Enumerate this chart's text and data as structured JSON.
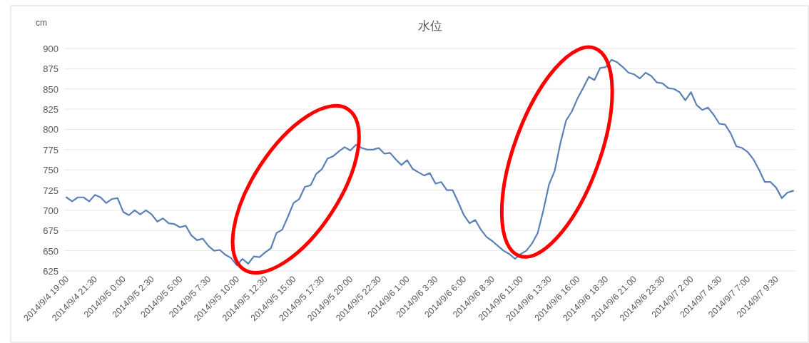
{
  "chart_data": {
    "type": "line",
    "title": "水位",
    "ylabel": "cm",
    "color": "#5b80b8",
    "grid": "y",
    "xlim": [
      "2014-09-04T18:48",
      "2014-09-07T11:12"
    ],
    "ylim": [
      625,
      900
    ],
    "yticks": [
      625,
      650,
      675,
      700,
      725,
      750,
      775,
      800,
      825,
      850,
      875,
      900
    ],
    "xticks": [
      {
        "value": "2014-09-04T19:00",
        "label": "2014/9/4 19:00"
      },
      {
        "value": "2014-09-04T21:30",
        "label": "2014/9/4 21:30"
      },
      {
        "value": "2014-09-05T00:00",
        "label": "2014/9/5 0:00"
      },
      {
        "value": "2014-09-05T02:30",
        "label": "2014/9/5 2:30"
      },
      {
        "value": "2014-09-05T05:00",
        "label": "2014/9/5 5:00"
      },
      {
        "value": "2014-09-05T07:30",
        "label": "2014/9/5 7:30"
      },
      {
        "value": "2014-09-05T10:00",
        "label": "2014/9/5 10:00"
      },
      {
        "value": "2014-09-05T12:30",
        "label": "2014/9/5 12:30"
      },
      {
        "value": "2014-09-05T15:00",
        "label": "2014/9/5 15:00"
      },
      {
        "value": "2014-09-05T17:30",
        "label": "2014/9/5 17:30"
      },
      {
        "value": "2014-09-05T20:00",
        "label": "2014/9/5 20:00"
      },
      {
        "value": "2014-09-05T22:30",
        "label": "2014/9/5 22:30"
      },
      {
        "value": "2014-09-06T01:00",
        "label": "2014/9/6 1:00"
      },
      {
        "value": "2014-09-06T03:30",
        "label": "2014/9/6 3:30"
      },
      {
        "value": "2014-09-06T06:00",
        "label": "2014/9/6 6:00"
      },
      {
        "value": "2014-09-06T08:30",
        "label": "2014/9/6 8:30"
      },
      {
        "value": "2014-09-06T11:00",
        "label": "2014/9/6 11:00"
      },
      {
        "value": "2014-09-06T13:30",
        "label": "2014/9/6 13:30"
      },
      {
        "value": "2014-09-06T16:00",
        "label": "2014/9/6 16:00"
      },
      {
        "value": "2014-09-06T18:30",
        "label": "2014/9/6 18:30"
      },
      {
        "value": "2014-09-06T21:00",
        "label": "2014/9/6 21:00"
      },
      {
        "value": "2014-09-06T23:30",
        "label": "2014/9/6 23:30"
      },
      {
        "value": "2014-09-07T02:00",
        "label": "2014/9/7 2:00"
      },
      {
        "value": "2014-09-07T04:30",
        "label": "2014/9/7 4:30"
      },
      {
        "value": "2014-09-07T07:00",
        "label": "2014/9/7 7:00"
      },
      {
        "value": "2014-09-07T09:30",
        "label": "2014/9/7 9:30"
      }
    ],
    "x": [
      "2014-09-04T19:00",
      "2014-09-04T19:30",
      "2014-09-04T20:00",
      "2014-09-04T20:30",
      "2014-09-04T21:00",
      "2014-09-04T21:30",
      "2014-09-04T22:00",
      "2014-09-04T22:30",
      "2014-09-04T23:00",
      "2014-09-04T23:30",
      "2014-09-05T00:00",
      "2014-09-05T00:30",
      "2014-09-05T01:00",
      "2014-09-05T01:30",
      "2014-09-05T02:00",
      "2014-09-05T02:30",
      "2014-09-05T03:00",
      "2014-09-05T03:30",
      "2014-09-05T04:00",
      "2014-09-05T04:30",
      "2014-09-05T05:00",
      "2014-09-05T05:30",
      "2014-09-05T06:00",
      "2014-09-05T06:30",
      "2014-09-05T07:00",
      "2014-09-05T07:30",
      "2014-09-05T08:00",
      "2014-09-05T08:30",
      "2014-09-05T09:00",
      "2014-09-05T09:30",
      "2014-09-05T10:00",
      "2014-09-05T10:30",
      "2014-09-05T11:00",
      "2014-09-05T11:30",
      "2014-09-05T12:00",
      "2014-09-05T12:30",
      "2014-09-05T13:00",
      "2014-09-05T13:30",
      "2014-09-05T14:00",
      "2014-09-05T14:30",
      "2014-09-05T15:00",
      "2014-09-05T15:30",
      "2014-09-05T16:00",
      "2014-09-05T16:30",
      "2014-09-05T17:00",
      "2014-09-05T17:30",
      "2014-09-05T18:00",
      "2014-09-05T18:30",
      "2014-09-05T19:00",
      "2014-09-05T19:30",
      "2014-09-05T20:00",
      "2014-09-05T20:30",
      "2014-09-05T21:00",
      "2014-09-05T21:30",
      "2014-09-05T22:00",
      "2014-09-05T22:30",
      "2014-09-05T23:00",
      "2014-09-05T23:30",
      "2014-09-06T00:00",
      "2014-09-06T00:30",
      "2014-09-06T01:00",
      "2014-09-06T01:30",
      "2014-09-06T02:00",
      "2014-09-06T02:30",
      "2014-09-06T03:00",
      "2014-09-06T03:30",
      "2014-09-06T04:00",
      "2014-09-06T04:30",
      "2014-09-06T05:00",
      "2014-09-06T05:30",
      "2014-09-06T06:00",
      "2014-09-06T06:30",
      "2014-09-06T07:00",
      "2014-09-06T07:30",
      "2014-09-06T08:00",
      "2014-09-06T08:30",
      "2014-09-06T09:00",
      "2014-09-06T09:30",
      "2014-09-06T10:00",
      "2014-09-06T10:30",
      "2014-09-06T11:00",
      "2014-09-06T11:30",
      "2014-09-06T12:00",
      "2014-09-06T12:30",
      "2014-09-06T13:00",
      "2014-09-06T13:30",
      "2014-09-06T14:00",
      "2014-09-06T14:30",
      "2014-09-06T15:00",
      "2014-09-06T15:30",
      "2014-09-06T16:00",
      "2014-09-06T16:30",
      "2014-09-06T17:00",
      "2014-09-06T17:30",
      "2014-09-06T18:00",
      "2014-09-06T18:30",
      "2014-09-06T19:00",
      "2014-09-06T19:30",
      "2014-09-06T20:00",
      "2014-09-06T20:30",
      "2014-09-06T21:00",
      "2014-09-06T21:30",
      "2014-09-06T22:00",
      "2014-09-06T22:30",
      "2014-09-06T23:00",
      "2014-09-06T23:30",
      "2014-09-07T00:00",
      "2014-09-07T00:30",
      "2014-09-07T01:00",
      "2014-09-07T01:30",
      "2014-09-07T02:00",
      "2014-09-07T02:30",
      "2014-09-07T03:00",
      "2014-09-07T03:30",
      "2014-09-07T04:00",
      "2014-09-07T04:30",
      "2014-09-07T05:00",
      "2014-09-07T05:30",
      "2014-09-07T06:00",
      "2014-09-07T06:30",
      "2014-09-07T07:00",
      "2014-09-07T07:30",
      "2014-09-07T08:00",
      "2014-09-07T08:30",
      "2014-09-07T09:00",
      "2014-09-07T09:30",
      "2014-09-07T10:00",
      "2014-09-07T10:30",
      "2014-09-07T11:00"
    ],
    "values": [
      716,
      711,
      716,
      716,
      711,
      719,
      716,
      709,
      714,
      715,
      698,
      694,
      700,
      695,
      700,
      695,
      686,
      690,
      684,
      683,
      679,
      681,
      669,
      663,
      665,
      656,
      650,
      651,
      645,
      641,
      632,
      640,
      634,
      643,
      642,
      648,
      653,
      672,
      676,
      692,
      709,
      714,
      729,
      731,
      745,
      751,
      764,
      767,
      773,
      778,
      774,
      781,
      777,
      775,
      775,
      777,
      770,
      771,
      763,
      756,
      762,
      751,
      747,
      743,
      746,
      733,
      735,
      725,
      725,
      710,
      694,
      684,
      688,
      676,
      667,
      662,
      656,
      650,
      646,
      640,
      646,
      650,
      659,
      672,
      700,
      732,
      749,
      783,
      811,
      822,
      838,
      851,
      865,
      861,
      876,
      877,
      886,
      883,
      877,
      870,
      868,
      863,
      870,
      866,
      858,
      857,
      851,
      850,
      846,
      836,
      846,
      830,
      824,
      827,
      818,
      807,
      806,
      795,
      779,
      777,
      772,
      763,
      750,
      735,
      735,
      728,
      715,
      722,
      724
    ]
  }
}
